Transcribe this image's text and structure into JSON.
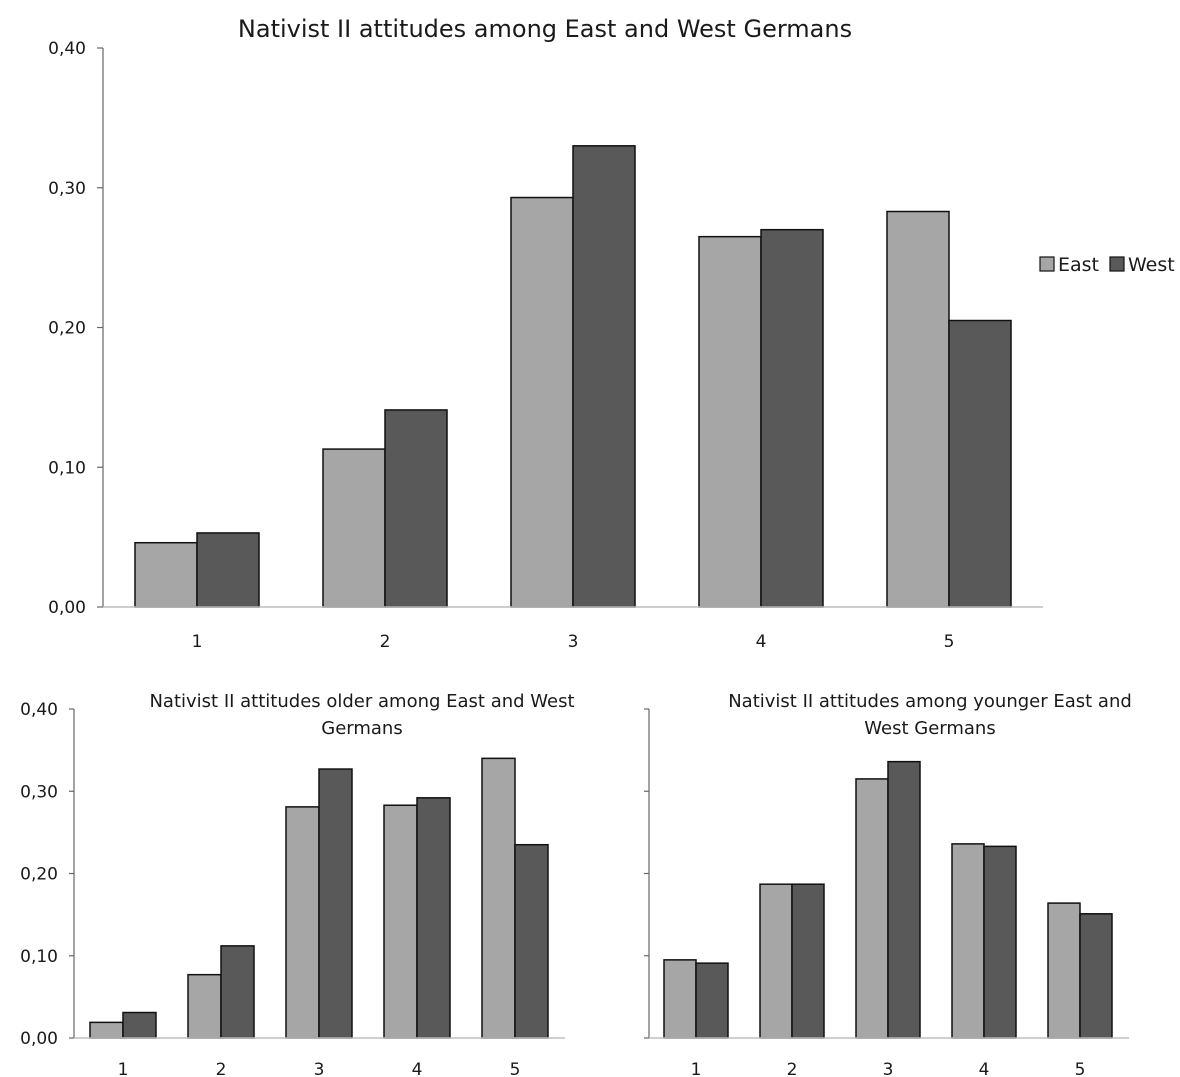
{
  "colors": {
    "East": "#a6a6a6",
    "West": "#595959",
    "outline": "#111111",
    "axis": "#666666"
  },
  "chart_data": [
    {
      "type": "bar",
      "title": "Nativist II attitudes among East and West Germans",
      "title_lines": [
        "Nativist II attitudes among East and West Germans"
      ],
      "categories": [
        "1",
        "2",
        "3",
        "4",
        "5"
      ],
      "series": [
        {
          "name": "East",
          "values": [
            0.046,
            0.113,
            0.293,
            0.265,
            0.283
          ]
        },
        {
          "name": "West",
          "values": [
            0.053,
            0.141,
            0.33,
            0.27,
            0.205
          ]
        }
      ],
      "ylim": [
        0,
        0.4
      ],
      "yticks": [
        "0,00",
        "0,10",
        "0,20",
        "0,30",
        "0,40"
      ],
      "show_ytick_labels": true,
      "legend": {
        "position": "right",
        "entries": [
          "East",
          "West"
        ]
      },
      "grid": false
    },
    {
      "type": "bar",
      "title": "Nativist II attitudes older among East and West Germans",
      "title_lines": [
        "Nativist II attitudes older among East and West",
        "Germans"
      ],
      "categories": [
        "1",
        "2",
        "3",
        "4",
        "5"
      ],
      "series": [
        {
          "name": "East",
          "values": [
            0.019,
            0.077,
            0.281,
            0.283,
            0.34
          ]
        },
        {
          "name": "West",
          "values": [
            0.031,
            0.112,
            0.327,
            0.292,
            0.235
          ]
        }
      ],
      "ylim": [
        0,
        0.4
      ],
      "yticks": [
        "0,00",
        "0,10",
        "0,20",
        "0,30",
        "0,40"
      ],
      "show_ytick_labels": true,
      "grid": false
    },
    {
      "type": "bar",
      "title": "Nativist II attitudes among younger East and West Germans",
      "title_lines": [
        "Nativist II attitudes among younger East and",
        "West Germans"
      ],
      "categories": [
        "1",
        "2",
        "3",
        "4",
        "5"
      ],
      "series": [
        {
          "name": "East",
          "values": [
            0.095,
            0.187,
            0.315,
            0.236,
            0.164
          ]
        },
        {
          "name": "West",
          "values": [
            0.091,
            0.187,
            0.336,
            0.233,
            0.151
          ]
        }
      ],
      "ylim": [
        0,
        0.4
      ],
      "show_ytick_labels": false,
      "grid": false
    }
  ]
}
